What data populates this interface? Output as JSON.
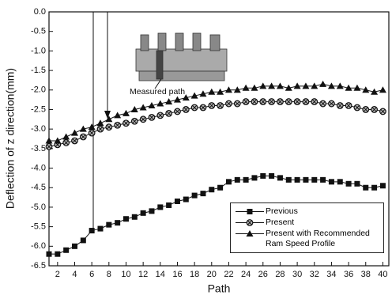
{
  "chart_data": {
    "type": "line",
    "x_label": "Path",
    "y_label": "Deflection of z direction(mm)",
    "annotation": "Measured path",
    "x": [
      1,
      2,
      3,
      4,
      5,
      6,
      7,
      8,
      9,
      10,
      11,
      12,
      13,
      14,
      15,
      16,
      17,
      18,
      19,
      20,
      21,
      22,
      23,
      24,
      25,
      26,
      27,
      28,
      29,
      30,
      31,
      32,
      33,
      34,
      35,
      36,
      37,
      38,
      39,
      40
    ],
    "xlim": [
      1,
      40.7
    ],
    "xticks": [
      2,
      4,
      6,
      8,
      10,
      12,
      14,
      16,
      18,
      20,
      22,
      24,
      26,
      28,
      30,
      32,
      34,
      36,
      38,
      40
    ],
    "ylim": [
      -6.5,
      0
    ],
    "yticks": [
      {
        "value": 0,
        "label": "0.0"
      },
      -0.5,
      {
        "value": -1,
        "label": "-1.0"
      },
      -1.5,
      {
        "value": -2,
        "label": "-2.0"
      },
      -2.5,
      {
        "value": -3,
        "label": "-3.0"
      },
      -3.5,
      {
        "value": -4,
        "label": "-4.0"
      },
      -4.5,
      {
        "value": -5,
        "label": "-5.0"
      },
      -5.5,
      {
        "value": -6,
        "label": "-6.0"
      },
      -6.5
    ],
    "series": [
      {
        "name": "Previous",
        "color": "#111111",
        "marker": "square",
        "values": [
          -6.2,
          -6.2,
          -6.1,
          -6.0,
          -5.85,
          -5.6,
          -5.55,
          -5.45,
          -5.4,
          -5.3,
          -5.25,
          -5.15,
          -5.1,
          -5.0,
          -4.95,
          -4.85,
          -4.8,
          -4.7,
          -4.65,
          -4.55,
          -4.5,
          -4.35,
          -4.3,
          -4.3,
          -4.25,
          -4.2,
          -4.2,
          -4.25,
          -4.3,
          -4.3,
          -4.3,
          -4.3,
          -4.3,
          -4.35,
          -4.35,
          -4.4,
          -4.4,
          -4.5,
          -4.5,
          -4.45
        ]
      },
      {
        "name": "Present",
        "color": "#111111",
        "marker": "circle-x",
        "values": [
          -3.45,
          -3.4,
          -3.35,
          -3.3,
          -3.2,
          -3.1,
          -3.0,
          -2.95,
          -2.9,
          -2.85,
          -2.8,
          -2.75,
          -2.7,
          -2.65,
          -2.6,
          -2.55,
          -2.5,
          -2.45,
          -2.45,
          -2.4,
          -2.4,
          -2.35,
          -2.35,
          -2.3,
          -2.3,
          -2.3,
          -2.3,
          -2.3,
          -2.3,
          -2.3,
          -2.3,
          -2.3,
          -2.35,
          -2.35,
          -2.4,
          -2.4,
          -2.45,
          -2.5,
          -2.5,
          -2.55
        ]
      },
      {
        "name": "Present with Recommended Ram Speed Profile",
        "color": "#111111",
        "marker": "triangle",
        "values": [
          -3.3,
          -3.3,
          -3.2,
          -3.1,
          -3.0,
          -2.95,
          -2.85,
          -2.75,
          -2.65,
          -2.6,
          -2.5,
          -2.45,
          -2.4,
          -2.35,
          -2.3,
          -2.25,
          -2.2,
          -2.15,
          -2.1,
          -2.05,
          -2.05,
          -2.0,
          -2.0,
          -1.95,
          -1.95,
          -1.9,
          -1.9,
          -1.9,
          -1.95,
          -1.9,
          -1.9,
          -1.9,
          -1.85,
          -1.9,
          -1.9,
          -1.95,
          -1.95,
          -2.0,
          -2.05,
          -2.0
        ]
      }
    ]
  }
}
